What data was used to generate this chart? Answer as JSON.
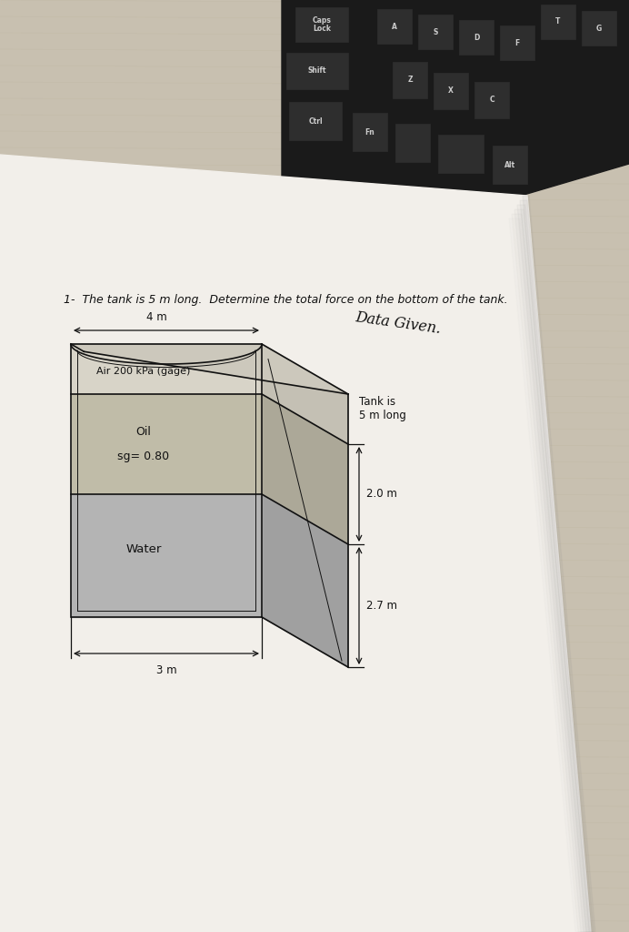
{
  "bg_color": "#c8c0b0",
  "paper_color": "#f2efea",
  "keyboard_color": "#1a1a1a",
  "title_text": "1-  The tank is 5 m long.  Determine the total force on the bottom of the tank.",
  "handwritten_text": "Data Given.",
  "air_label": "Air 200 kPa (gage)",
  "oil_label1": "Oil",
  "oil_label2": "sg= 0.80",
  "water_label": "Water",
  "dim_4m": "4 m",
  "dim_3m": "3 m",
  "dim_2m": "2.0 m",
  "dim_27m": "2.7 m",
  "tank_label": "Tank is\n5 m long",
  "air_color": "#d8d4c8",
  "oil_color": "#c0bca8",
  "water_color": "#b4b4b4",
  "air_right_color": "#c4c0b4",
  "oil_right_color": "#aca898",
  "water_right_color": "#a0a0a0",
  "top_color": "#ccc8bc",
  "line_color": "#111111",
  "lw": 1.2
}
